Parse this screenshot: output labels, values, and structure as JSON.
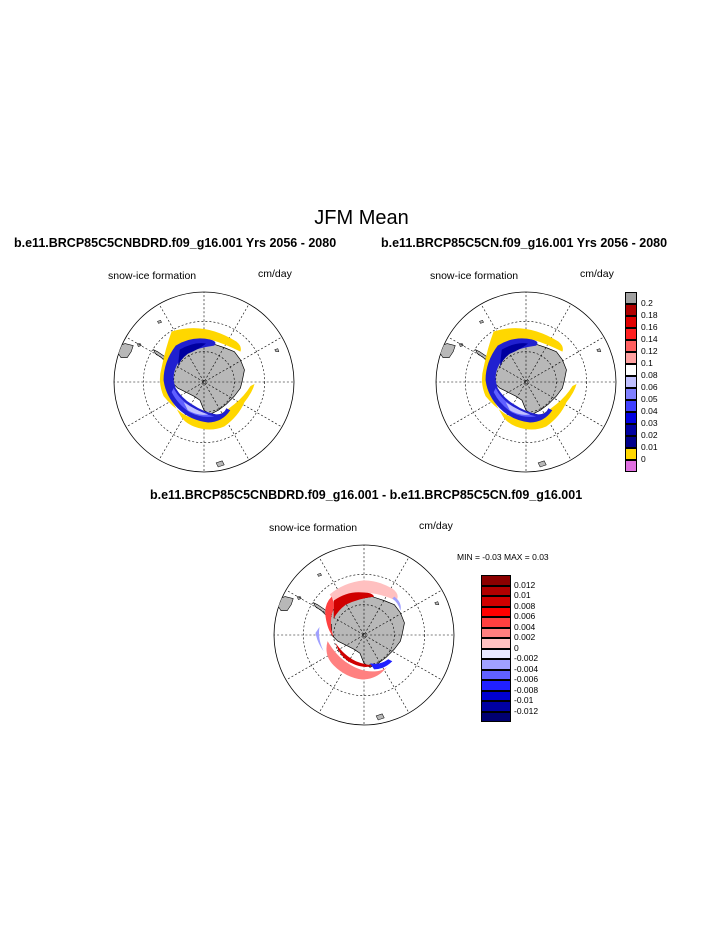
{
  "main_title": "JFM Mean",
  "top_left": {
    "title": "b.e11.BRCP85C5CNBDRD.f09_g16.001  Yrs 2056 - 2080",
    "variable": "snow-ice formation",
    "units": "cm/day"
  },
  "top_right": {
    "title": "b.e11.BRCP85C5CN.f09_g16.001  Yrs 2056 - 2080",
    "variable": "snow-ice formation",
    "units": "cm/day"
  },
  "top_colorbar": {
    "labels": [
      "0.2",
      "0.18",
      "0.16",
      "0.14",
      "0.12",
      "0.1",
      "0.08",
      "0.06",
      "0.05",
      "0.04",
      "0.03",
      "0.02",
      "0.01",
      "0"
    ],
    "colors": [
      "#a0a0a0",
      "#b00000",
      "#e00000",
      "#ff2020",
      "#ff6060",
      "#ffa0a0",
      "#ffffff",
      "#c0c0ff",
      "#8080ff",
      "#4040ff",
      "#0000e0",
      "#0000a0",
      "#00008a",
      "#ffd700",
      "#e070e0"
    ]
  },
  "diff": {
    "title": "b.e11.BRCP85C5CNBDRD.f09_g16.001 - b.e11.BRCP85C5CN.f09_g16.001",
    "variable": "snow-ice formation",
    "units": "cm/day",
    "minmax": "MIN =  -0.03 MAX =   0.03"
  },
  "diff_colorbar": {
    "labels": [
      "0.012",
      "0.01",
      "0.008",
      "0.006",
      "0.004",
      "0.002",
      "0",
      "-0.002",
      "-0.004",
      "-0.006",
      "-0.008",
      "-0.01",
      "-0.012"
    ],
    "colors": [
      "#8b0000",
      "#b00000",
      "#d00000",
      "#ff0000",
      "#ff4040",
      "#ff8080",
      "#ffc0c0",
      "#e8e8ff",
      "#a0a0ff",
      "#6060ff",
      "#2020ff",
      "#0000d0",
      "#0000a0",
      "#000070"
    ]
  }
}
